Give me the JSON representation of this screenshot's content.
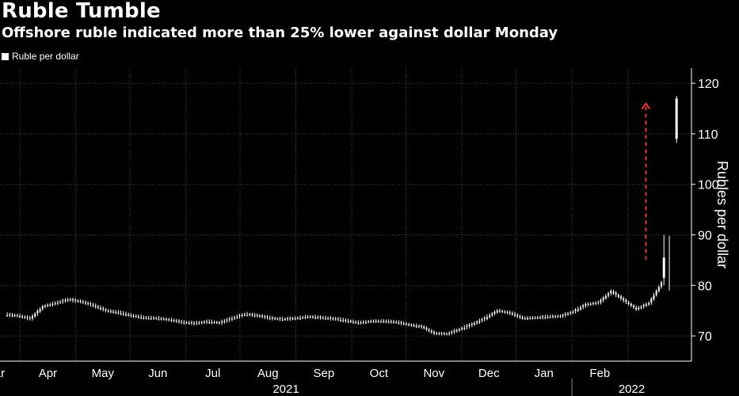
{
  "title": "Ruble Tumble",
  "subtitle": "Offshore ruble indicated more than 25% lower against dollar Monday",
  "colors": {
    "background": "#000000",
    "series": "#ffffff",
    "grid": "#4a4a4a",
    "arrow": "#e03a3a"
  },
  "chart_data": {
    "type": "candlestick",
    "title": "Ruble Tumble",
    "subtitle": "Offshore ruble indicated more than 25% lower against dollar Monday",
    "ylabel": "Rubles per dollar",
    "ylim": [
      65,
      123
    ],
    "yticks": [
      70,
      80,
      90,
      100,
      110,
      120
    ],
    "grid": true,
    "legend_position": "top-left",
    "series": [
      {
        "name": "Ruble per dollar",
        "dates": [
          "2021-02-22",
          "2021-03-01",
          "2021-03-08",
          "2021-03-15",
          "2021-03-22",
          "2021-03-29",
          "2021-04-05",
          "2021-04-12",
          "2021-04-19",
          "2021-04-26",
          "2021-05-03",
          "2021-05-10",
          "2021-05-17",
          "2021-05-24",
          "2021-05-31",
          "2021-06-07",
          "2021-06-14",
          "2021-06-21",
          "2021-06-28",
          "2021-07-05",
          "2021-07-12",
          "2021-07-19",
          "2021-07-26",
          "2021-08-02",
          "2021-08-09",
          "2021-08-16",
          "2021-08-23",
          "2021-08-30",
          "2021-09-06",
          "2021-09-13",
          "2021-09-20",
          "2021-09-27",
          "2021-10-04",
          "2021-10-11",
          "2021-10-18",
          "2021-10-25",
          "2021-11-01",
          "2021-11-08",
          "2021-11-15",
          "2021-11-22",
          "2021-11-29",
          "2021-12-06",
          "2021-12-13",
          "2021-12-20",
          "2021-12-27",
          "2022-01-03",
          "2022-01-10",
          "2022-01-17",
          "2022-01-24",
          "2022-01-31",
          "2022-02-07",
          "2022-02-14",
          "2022-02-21",
          "2022-02-28"
        ],
        "values": [
          74.2,
          74.0,
          73.4,
          75.8,
          76.5,
          77.2,
          76.8,
          76.0,
          75.0,
          74.6,
          74.0,
          73.6,
          73.5,
          73.2,
          72.7,
          72.5,
          72.8,
          72.6,
          73.5,
          74.3,
          74.0,
          73.5,
          73.3,
          73.5,
          73.8,
          73.6,
          73.4,
          73.0,
          72.6,
          72.9,
          72.9,
          72.7,
          72.2,
          71.8,
          70.5,
          70.4,
          71.3,
          72.3,
          73.5,
          75.0,
          74.5,
          73.5,
          73.6,
          73.8,
          73.9,
          74.8,
          76.2,
          76.6,
          78.8,
          77.0,
          75.3,
          76.5,
          80.5,
          113.0
        ],
        "last_candle": {
          "date": "2022-02-28",
          "open": 109.0,
          "close": 117.0,
          "low": 108.2,
          "high": 117.5
        }
      }
    ],
    "annotation": {
      "type": "arrow",
      "from_value": 85,
      "to_value": 116,
      "x_date": "2022-02-11",
      "style": "dashed"
    },
    "x_tick_labels": [
      "Mar",
      "Apr",
      "May",
      "Jun",
      "Jul",
      "Aug",
      "Sep",
      "Oct",
      "Nov",
      "Dec",
      "Jan",
      "Feb"
    ],
    "x_year_labels": [
      "2021",
      "2022"
    ]
  }
}
